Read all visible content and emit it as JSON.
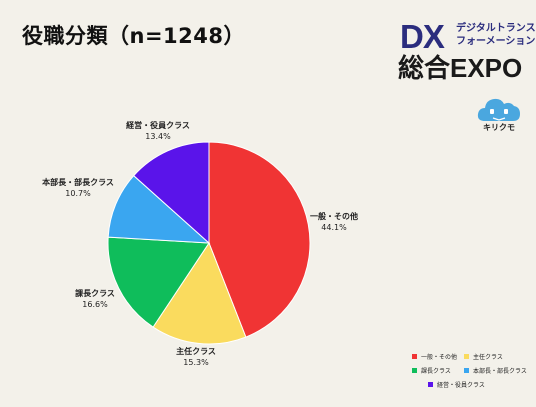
{
  "title": "役職分類（n=1248）",
  "brand": {
    "dx": "DX",
    "subtitle_line1": "デジタルトランス",
    "subtitle_line2": "フォーメーション",
    "expo": "総合EXPO",
    "mascot_label": "キリクモ"
  },
  "colors": {
    "background": "#f3f1ea",
    "brand_navy": "#2b2d7e",
    "mascot_blue": "#4aa7df"
  },
  "chart_data": {
    "type": "pie",
    "title": "役職分類（n=1248）",
    "start_angle_deg": 0,
    "direction": "clockwise",
    "legend_position": "bottom-right",
    "slices": [
      {
        "label": "一般・その他",
        "value": 44.1,
        "pct_label": "44.1%",
        "color": "#f03434"
      },
      {
        "label": "主任クラス",
        "value": 15.3,
        "pct_label": "15.3%",
        "color": "#fadb5e"
      },
      {
        "label": "課長クラス",
        "value": 16.6,
        "pct_label": "16.6%",
        "color": "#0fbd5b"
      },
      {
        "label": "本部長・部長クラス",
        "value": 10.7,
        "pct_label": "10.7%",
        "color": "#3aa6f0"
      },
      {
        "label": "経営・役員クラス",
        "value": 13.4,
        "pct_label": "13.4%",
        "color": "#5a14ea"
      }
    ]
  }
}
